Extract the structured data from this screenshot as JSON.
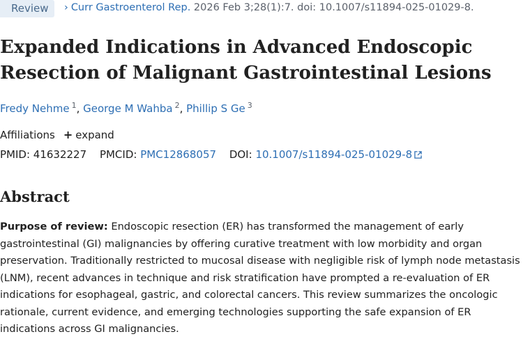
{
  "header": {
    "badge": "Review",
    "journal": "Curr Gastroenterol Rep.",
    "citation_rest": " 2026 Feb 3;28(1):7. doi: 10.1007/s11894-025-01029-8."
  },
  "article": {
    "title": "Expanded Indications in Advanced Endoscopic Resection of Malignant Gastrointestinal Lesions",
    "authors": [
      {
        "name": "Fredy Nehme",
        "sup": "1"
      },
      {
        "name": "George M Wahba",
        "sup": "2"
      },
      {
        "name": "Phillip S Ge",
        "sup": "3"
      }
    ],
    "affiliations_label": "Affiliations",
    "expand_label": "expand",
    "pmid_label": "PMID:",
    "pmid": "41632227",
    "pmcid_label": "PMCID:",
    "pmcid": "PMC12868057",
    "doi_label": "DOI:",
    "doi": "10.1007/s11894-025-01029-8"
  },
  "abstract": {
    "heading": "Abstract",
    "lead": "Purpose of review:",
    "text": " Endoscopic resection (ER) has transformed the management of early gastrointestinal (GI) malignancies by offering curative treatment with low morbidity and organ preservation. Traditionally restricted to mucosal disease with negligible risk of lymph node metastasis (LNM), recent advances in technique and risk stratification have prompted a re-evaluation of ER indications for esophageal, gastric, and colorectal cancers. This review summarizes the oncologic rationale, current evidence, and emerging technologies supporting the safe expansion of ER indications across GI malignancies."
  }
}
